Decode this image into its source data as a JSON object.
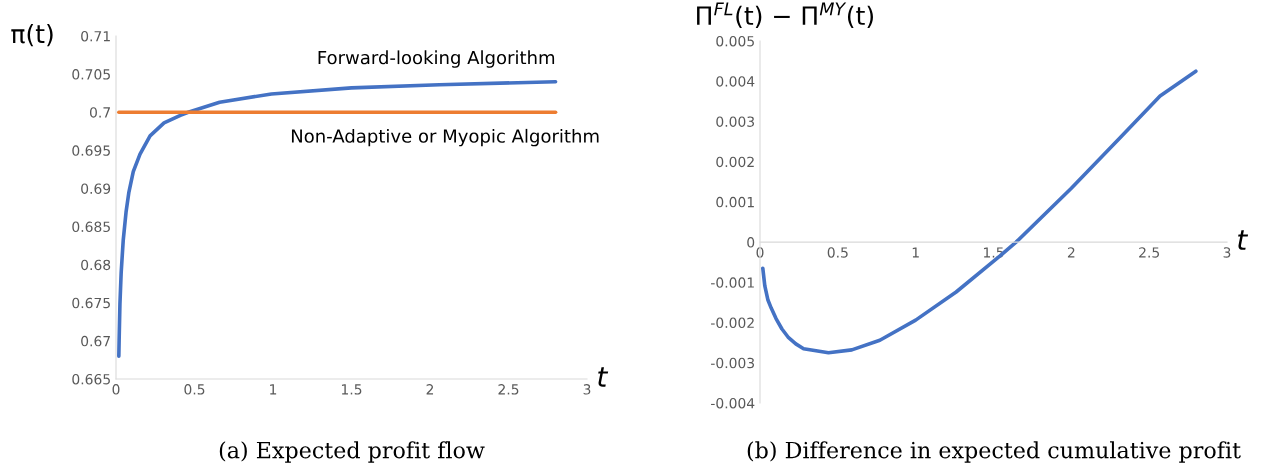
{
  "chart_data": [
    {
      "type": "line",
      "ylabel": "π(t)",
      "xlabel": "t",
      "annotations": [
        "(a) Expected profit flow"
      ],
      "legend": false,
      "grid": false,
      "xlim": [
        0,
        3
      ],
      "xticks": [
        0,
        0.5,
        1,
        1.5,
        2,
        2.5,
        3
      ],
      "ylim": [
        0.665,
        0.71
      ],
      "yticks": [
        0.665,
        0.67,
        0.675,
        0.68,
        0.685,
        0.69,
        0.695,
        0.7,
        0.705,
        0.71
      ],
      "series": [
        {
          "name": "Forward-looking Algorithm",
          "color": "#4472c4",
          "x": [
            0.018,
            0.02,
            0.025,
            0.033,
            0.046,
            0.064,
            0.082,
            0.11,
            0.153,
            0.217,
            0.306,
            0.41,
            0.46,
            0.66,
            0.99,
            1.5,
            2.06,
            2.8
          ],
          "values": [
            0.668,
            0.6701,
            0.6748,
            0.679,
            0.6832,
            0.6869,
            0.6895,
            0.6922,
            0.6945,
            0.6969,
            0.6986,
            0.6996,
            0.7,
            0.7013,
            0.7024,
            0.7032,
            0.7036,
            0.704
          ]
        },
        {
          "name": "Non-Adaptive or Myopic Algorithm",
          "color": "#ed7d31",
          "x": [
            0.018,
            2.8
          ],
          "values": [
            0.7,
            0.7
          ]
        }
      ]
    },
    {
      "type": "line",
      "ylabel": "Π$^{FL}$(t) − Π$^{MY}$(t)",
      "xlabel": "t",
      "annotations": [
        "(b) Difference in expected cumulative profit"
      ],
      "legend": false,
      "grid": false,
      "xlim": [
        0,
        3
      ],
      "xticks": [
        0,
        0.5,
        1,
        1.5,
        2,
        2.5,
        3
      ],
      "ylim": [
        -0.004,
        0.005
      ],
      "yticks": [
        -0.004,
        -0.003,
        -0.002,
        -0.001,
        0,
        0.001,
        0.002,
        0.003,
        0.004,
        0.005
      ],
      "series": [
        {
          "color": "#4472c4",
          "x": [
            0.018,
            0.031,
            0.051,
            0.072,
            0.103,
            0.141,
            0.18,
            0.23,
            0.28,
            0.44,
            0.59,
            0.77,
            1.0,
            1.26,
            1.54,
            1.645,
            2.0,
            2.31,
            2.57,
            2.8
          ],
          "values": [
            -0.00065,
            -0.00109,
            -0.00144,
            -0.00164,
            -0.0019,
            -0.00216,
            -0.00236,
            -0.00253,
            -0.00265,
            -0.00275,
            -0.00268,
            -0.00244,
            -0.00194,
            -0.00124,
            -0.00035,
            0,
            0.00134,
            0.00258,
            0.00363,
            0.00425
          ]
        }
      ]
    }
  ]
}
